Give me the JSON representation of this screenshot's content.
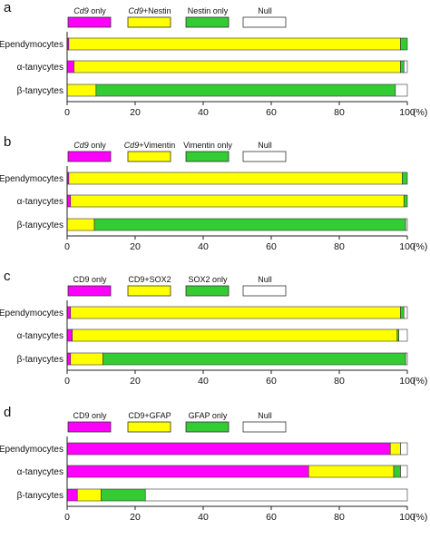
{
  "chart_data": [
    {
      "panel": "a",
      "type": "bar",
      "orientation": "horizontal",
      "stacked": true,
      "categories": [
        "Ependymocytes",
        "α-tanycytes",
        "β-tanycytes"
      ],
      "series": [
        {
          "name": "Cd9 only",
          "name_prefix": "Cd9",
          "name_suffix": " only",
          "color": "#ff00ff",
          "values": [
            0.5,
            2,
            0
          ]
        },
        {
          "name": "Cd9+Nestin",
          "name_prefix": "Cd9",
          "name_suffix": "+Nestin",
          "color": "#ffff00",
          "values": [
            97.5,
            96,
            8.5
          ]
        },
        {
          "name": "Nestin only",
          "color": "#33cc33",
          "values": [
            2,
            1,
            88
          ]
        },
        {
          "name": "Null",
          "color": "#ffffff",
          "values": [
            0,
            1,
            3.5
          ]
        }
      ],
      "x_ticks": [
        "0",
        "20",
        "40",
        "60",
        "80",
        "100"
      ],
      "x_unit": "(%)",
      "xlim": [
        0,
        100
      ]
    },
    {
      "panel": "b",
      "type": "bar",
      "orientation": "horizontal",
      "stacked": true,
      "categories": [
        "Ependymocytes",
        "α-tanycytes",
        "β-tanycytes"
      ],
      "series": [
        {
          "name": "Cd9 only",
          "name_prefix": "Cd9",
          "name_suffix": " only",
          "color": "#ff00ff",
          "values": [
            0.5,
            1,
            0
          ]
        },
        {
          "name": "Cd9+Vimentin",
          "name_prefix": "Cd9",
          "name_suffix": "+Vimentin",
          "color": "#ffff00",
          "values": [
            98,
            98,
            8
          ]
        },
        {
          "name": "Vimentin only",
          "color": "#33cc33",
          "values": [
            1.5,
            1,
            91.5
          ]
        },
        {
          "name": "Null",
          "color": "#ffffff",
          "values": [
            0,
            0,
            0.5
          ]
        }
      ],
      "x_ticks": [
        "0",
        "20",
        "40",
        "60",
        "80",
        "100"
      ],
      "x_unit": "(%)",
      "xlim": [
        0,
        100
      ]
    },
    {
      "panel": "c",
      "type": "bar",
      "orientation": "horizontal",
      "stacked": true,
      "categories": [
        "Ependymocytes",
        "α-tanycytes",
        "β-tanycytes"
      ],
      "series": [
        {
          "name": "CD9 only",
          "color": "#ff00ff",
          "values": [
            1,
            1.5,
            1
          ]
        },
        {
          "name": "CD9+SOX2",
          "color": "#ffff00",
          "values": [
            97,
            95.5,
            9.5
          ]
        },
        {
          "name": "SOX2 only",
          "color": "#33cc33",
          "values": [
            1,
            0.5,
            89
          ]
        },
        {
          "name": "Null",
          "color": "#ffffff",
          "values": [
            1,
            2.5,
            0.5
          ]
        }
      ],
      "x_ticks": [
        "0",
        "20",
        "40",
        "60",
        "80",
        "100"
      ],
      "x_unit": "(%)",
      "xlim": [
        0,
        100
      ]
    },
    {
      "panel": "d",
      "type": "bar",
      "orientation": "horizontal",
      "stacked": true,
      "categories": [
        "Ependymocytes",
        "α-tanycytes",
        "β-tanycytes"
      ],
      "series": [
        {
          "name": "CD9 only",
          "color": "#ff00ff",
          "values": [
            95,
            71,
            3
          ]
        },
        {
          "name": "CD9+GFAP",
          "color": "#ffff00",
          "values": [
            3,
            25,
            7
          ]
        },
        {
          "name": "GFAP only",
          "color": "#33cc33",
          "values": [
            0,
            2,
            13
          ]
        },
        {
          "name": "Null",
          "color": "#ffffff",
          "values": [
            2,
            2,
            77
          ]
        }
      ],
      "x_ticks": [
        "0",
        "20",
        "40",
        "60",
        "80",
        "100"
      ],
      "x_unit": "(%)",
      "xlim": [
        0,
        100
      ]
    }
  ]
}
